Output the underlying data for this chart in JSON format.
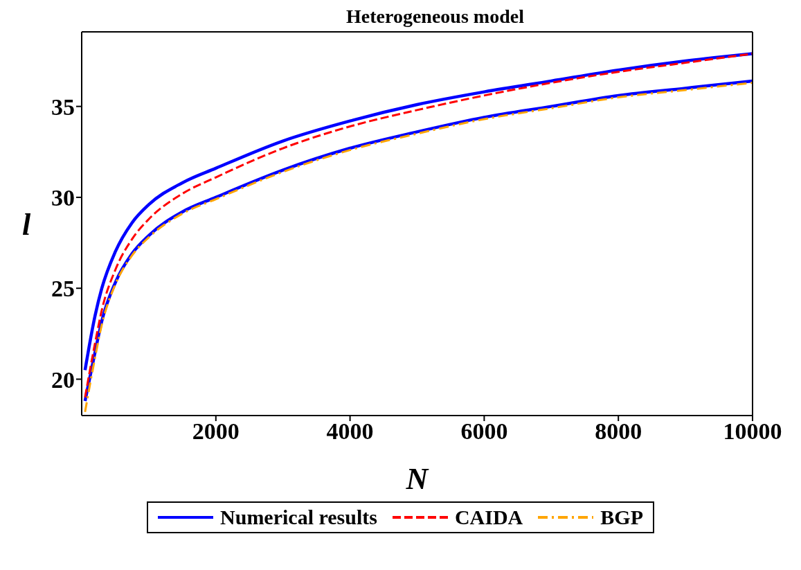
{
  "chart_data": {
    "type": "line",
    "title": "Heterogeneous model",
    "xlabel": "N",
    "ylabel": "l",
    "xlim": [
      0,
      10000
    ],
    "xticks": [
      2000,
      4000,
      6000,
      8000,
      10000
    ],
    "ylim": [
      18,
      39.1
    ],
    "yticks": [
      20,
      25,
      30,
      35
    ],
    "grid": false,
    "legend": "bottom",
    "marker": "none",
    "series": [
      {
        "name": "Numerical results",
        "color": "#0000ff",
        "line_style": "solid",
        "x": [
          50,
          200,
          300,
          500,
          750,
          1000,
          1500,
          2000,
          3000,
          4000,
          5000,
          6000,
          7000,
          8000,
          9000,
          10000
        ],
        "values": [
          20.5,
          23.5,
          25.0,
          27.0,
          28.6,
          29.6,
          30.8,
          31.6,
          33.1,
          34.2,
          35.1,
          35.8,
          36.4,
          37.0,
          37.5,
          37.9
        ]
      },
      {
        "color": "#0000ff",
        "line_style": "solid",
        "x": [
          50,
          200,
          300,
          500,
          750,
          1000,
          1500,
          2000,
          3000,
          4000,
          5000,
          6000,
          7000,
          8000,
          9000,
          10000
        ],
        "values": [
          18.8,
          21.5,
          23.2,
          25.3,
          26.9,
          27.9,
          29.2,
          30.0,
          31.5,
          32.7,
          33.6,
          34.4,
          35.0,
          35.6,
          36.0,
          36.4
        ]
      },
      {
        "name": "CAIDA",
        "color": "#ff0000",
        "line_style": "dashed",
        "x": [
          50,
          200,
          300,
          500,
          750,
          1000,
          1500,
          2000,
          3000,
          4000,
          5000,
          6000,
          7000,
          8000,
          9000,
          10000
        ],
        "values": [
          19.0,
          22.0,
          23.8,
          26.0,
          27.7,
          28.8,
          30.2,
          31.1,
          32.7,
          33.9,
          34.8,
          35.6,
          36.3,
          36.9,
          37.4,
          37.9
        ]
      },
      {
        "name": "BGP",
        "color": "#ffa500",
        "line_style": "dashdot",
        "x": [
          50,
          200,
          300,
          500,
          750,
          1000,
          1500,
          2000,
          3000,
          4000,
          5000,
          6000,
          7000,
          8000,
          9000,
          10000
        ],
        "values": [
          18.2,
          21.2,
          23.0,
          25.2,
          26.8,
          27.8,
          29.1,
          29.9,
          31.4,
          32.6,
          33.5,
          34.3,
          34.9,
          35.5,
          35.9,
          36.3
        ]
      }
    ]
  }
}
